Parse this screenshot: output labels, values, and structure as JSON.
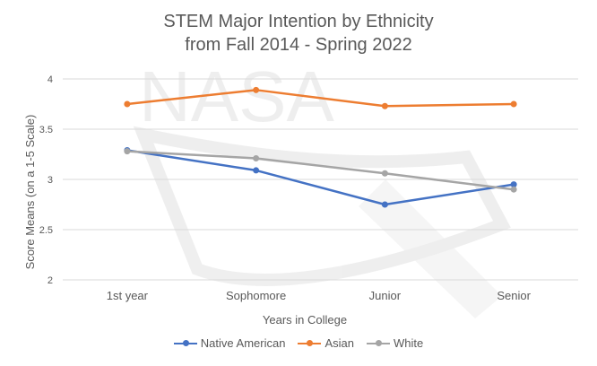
{
  "chart_data": {
    "type": "line",
    "title_line1": "STEM Major Intention by Ethnicity",
    "title_line2": "from Fall 2014 - Spring 2022",
    "xlabel": "Years in College",
    "ylabel": "Score Means (on a 1-5 Scale)",
    "categories": [
      "1st year",
      "Sophomore",
      "Junior",
      "Senior"
    ],
    "ylim": [
      2,
      4
    ],
    "yticks": [
      "2",
      "2.5",
      "3",
      "3.5",
      "4"
    ],
    "ytick_values": [
      2,
      2.5,
      3,
      3.5,
      4
    ],
    "grid": true,
    "legend_position": "bottom",
    "series": [
      {
        "name": "Native American",
        "color": "#4472C4",
        "values": [
          3.29,
          3.09,
          2.75,
          2.95
        ]
      },
      {
        "name": "Asian",
        "color": "#ED7D31",
        "values": [
          3.75,
          3.89,
          3.73,
          3.75
        ]
      },
      {
        "name": "White",
        "color": "#A5A5A5",
        "values": [
          3.28,
          3.21,
          3.06,
          2.9
        ]
      }
    ],
    "watermark": "NASA"
  }
}
